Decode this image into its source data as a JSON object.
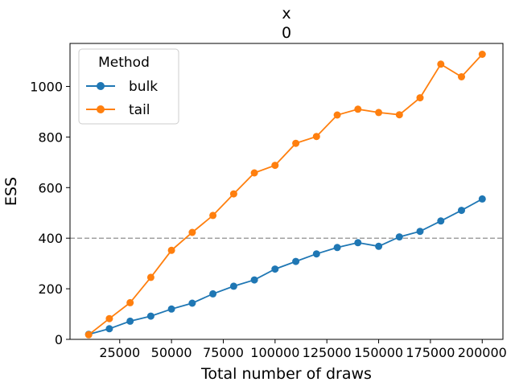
{
  "chart_data": {
    "type": "line",
    "title_lines": [
      "x",
      "0"
    ],
    "xlabel": "Total number of draws",
    "ylabel": "ESS",
    "xlim": [
      1000,
      210000
    ],
    "ylim": [
      0,
      1170
    ],
    "xticks": [
      25000,
      50000,
      75000,
      100000,
      125000,
      150000,
      175000,
      200000
    ],
    "yticks": [
      0,
      200,
      400,
      600,
      800,
      1000
    ],
    "reference_line": {
      "y": 400,
      "style": "dashed",
      "color": "#a0a0a0"
    },
    "legend": {
      "title": "Method",
      "position": "top-left"
    },
    "x": [
      10000,
      20000,
      30000,
      40000,
      50000,
      60000,
      70000,
      80000,
      90000,
      100000,
      110000,
      120000,
      130000,
      140000,
      150000,
      160000,
      170000,
      180000,
      190000,
      200000
    ],
    "series": [
      {
        "name": "bulk",
        "color": "#1f77b4",
        "values": [
          20,
          42,
          72,
          92,
          120,
          143,
          180,
          210,
          235,
          278,
          308,
          338,
          363,
          382,
          368,
          405,
          427,
          468,
          510,
          555
        ]
      },
      {
        "name": "tail",
        "color": "#ff7f0e",
        "values": [
          18,
          82,
          145,
          245,
          352,
          423,
          490,
          575,
          658,
          688,
          775,
          802,
          887,
          910,
          897,
          888,
          955,
          1088,
          1038,
          1127
        ]
      }
    ]
  }
}
